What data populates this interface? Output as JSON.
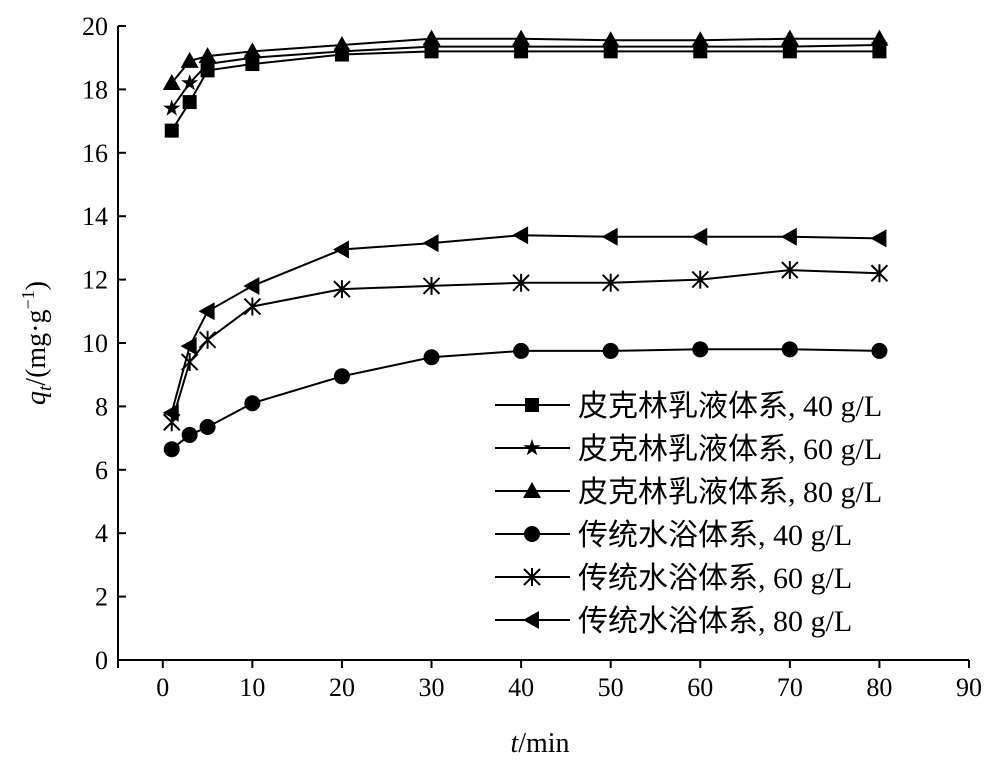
{
  "chart_data": {
    "type": "line",
    "title": "",
    "xlabel_italic": "t",
    "xlabel_rest": "/min",
    "ylabel_italic": "q",
    "ylabel_sub": "t",
    "ylabel_rest": "/(mg·g",
    "ylabel_sup": "−1",
    "ylabel_close": ")",
    "xlim": [
      -5,
      90
    ],
    "ylim": [
      0,
      20
    ],
    "xticks": [
      0,
      10,
      20,
      30,
      40,
      50,
      60,
      70,
      80,
      90
    ],
    "yticks": [
      0,
      2,
      4,
      6,
      8,
      10,
      12,
      14,
      16,
      18,
      20
    ],
    "grid": false,
    "legend_position": "center-right",
    "x": [
      1,
      3,
      5,
      10,
      20,
      30,
      40,
      50,
      60,
      70,
      80
    ],
    "series": [
      {
        "name": "皮克林乳液体系, 40 g/L",
        "marker": "square",
        "values": [
          16.7,
          17.6,
          18.6,
          18.8,
          19.1,
          19.2,
          19.2,
          19.2,
          19.2,
          19.2,
          19.2
        ]
      },
      {
        "name": "皮克林乳液体系, 60 g/L",
        "marker": "star",
        "values": [
          17.4,
          18.2,
          18.8,
          19.0,
          19.2,
          19.35,
          19.35,
          19.35,
          19.35,
          19.35,
          19.4
        ]
      },
      {
        "name": "皮克林乳液体系, 80 g/L",
        "marker": "triangle-up",
        "values": [
          18.2,
          18.9,
          19.05,
          19.2,
          19.4,
          19.6,
          19.6,
          19.55,
          19.55,
          19.6,
          19.6
        ]
      },
      {
        "name": "传统水浴体系, 40 g/L",
        "marker": "circle",
        "values": [
          6.65,
          7.1,
          7.35,
          8.1,
          8.95,
          9.55,
          9.75,
          9.75,
          9.8,
          9.8,
          9.75
        ]
      },
      {
        "name": "传统水浴体系, 60 g/L",
        "marker": "asterisk",
        "values": [
          7.5,
          9.4,
          10.1,
          11.15,
          11.7,
          11.8,
          11.9,
          11.9,
          12.0,
          12.3,
          12.2
        ]
      },
      {
        "name": "传统水浴体系, 80 g/L",
        "marker": "triangle-left",
        "values": [
          7.8,
          9.9,
          11.0,
          11.8,
          12.95,
          13.15,
          13.4,
          13.35,
          13.35,
          13.35,
          13.3
        ]
      }
    ]
  }
}
